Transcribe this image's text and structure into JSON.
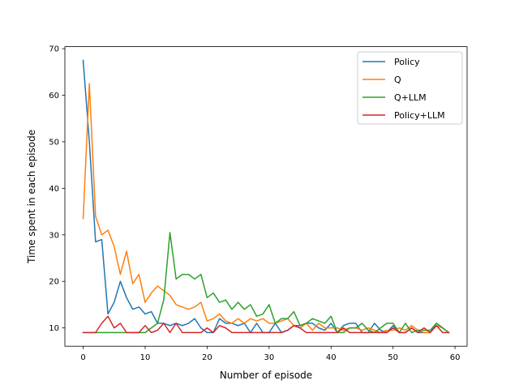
{
  "chart_data": {
    "type": "line",
    "title": "",
    "xlabel": "Number of episode",
    "ylabel": "Time spent in each episode",
    "xlim": [
      -2.95,
      61.95
    ],
    "ylim": [
      6.07,
      70.43
    ],
    "xticks": [
      0,
      10,
      20,
      30,
      40,
      50,
      60
    ],
    "yticks": [
      10,
      20,
      30,
      40,
      50,
      60,
      70
    ],
    "grid": false,
    "legend_position": "top-right",
    "x": [
      0,
      1,
      2,
      3,
      4,
      5,
      6,
      7,
      8,
      9,
      10,
      11,
      12,
      13,
      14,
      15,
      16,
      17,
      18,
      19,
      20,
      21,
      22,
      23,
      24,
      25,
      26,
      27,
      28,
      29,
      30,
      31,
      32,
      33,
      34,
      35,
      36,
      37,
      38,
      39,
      40,
      41,
      42,
      43,
      44,
      45,
      46,
      47,
      48,
      49,
      50,
      51,
      52,
      53,
      54,
      55,
      56,
      57,
      58,
      59
    ],
    "series": [
      {
        "name": "Policy",
        "color": "#1f77b4",
        "values": [
          67.5,
          50,
          28.5,
          29,
          13,
          15.5,
          20,
          16.5,
          14,
          14.5,
          13,
          13.5,
          11,
          11,
          10.5,
          11,
          10.5,
          11,
          12,
          10,
          9,
          9,
          12,
          11,
          11,
          10.5,
          11,
          9,
          11,
          9,
          9,
          11,
          9,
          9.5,
          10.5,
          10.5,
          11,
          11,
          10,
          9.5,
          11,
          9,
          10.5,
          11,
          11,
          9,
          9,
          11,
          9.5,
          9,
          10.5,
          9,
          9,
          10,
          9,
          9,
          9,
          11,
          10,
          9
        ]
      },
      {
        "name": "Q",
        "color": "#ff7f0e",
        "values": [
          33.5,
          62.5,
          34,
          30,
          31,
          27.5,
          21.5,
          26.5,
          19.5,
          21.5,
          15.5,
          17.5,
          19,
          18,
          17,
          15,
          14.5,
          14,
          14.5,
          15.5,
          11.5,
          12,
          13,
          11.5,
          11,
          12,
          11,
          12,
          11.5,
          12,
          11,
          11,
          11.5,
          12,
          10.5,
          10,
          11,
          9.5,
          11,
          10,
          10,
          10,
          9.5,
          10,
          10,
          9.5,
          10,
          9.5,
          9,
          9.5,
          9.5,
          10,
          9.5,
          10.5,
          9.5,
          9,
          9,
          10.5,
          10,
          9
        ]
      },
      {
        "name": "Q+LLM",
        "color": "#2ca02c",
        "values": [
          9,
          9,
          9,
          9,
          9,
          9,
          9,
          9,
          9,
          9,
          9,
          10,
          11,
          16,
          30.5,
          20.5,
          21.5,
          21.5,
          20.5,
          21.5,
          16.5,
          17.5,
          15.5,
          16,
          14,
          15.5,
          14,
          15,
          12.5,
          13,
          15,
          11,
          12,
          12,
          13.5,
          10.5,
          11,
          12,
          11.5,
          11,
          12.5,
          9,
          9,
          10,
          10,
          11,
          9.5,
          9,
          10,
          11,
          11,
          9,
          11,
          9,
          9.5,
          9.5,
          9.5,
          11,
          10,
          9
        ]
      },
      {
        "name": "Policy+LLM",
        "color": "#d62728",
        "values": [
          9,
          9,
          9,
          11,
          12.5,
          10,
          11,
          9,
          9,
          9,
          10.5,
          9,
          9.5,
          11,
          9,
          11,
          9,
          9,
          9,
          9,
          10,
          9,
          10.5,
          10,
          9,
          9,
          9,
          9,
          9,
          9,
          9,
          9,
          9,
          9.5,
          10.5,
          10,
          9,
          9,
          9,
          9,
          9,
          9,
          10,
          9,
          9,
          9,
          9,
          9,
          9,
          9,
          10,
          9,
          9,
          10,
          9,
          10,
          9,
          10.5,
          9,
          9
        ]
      }
    ]
  }
}
